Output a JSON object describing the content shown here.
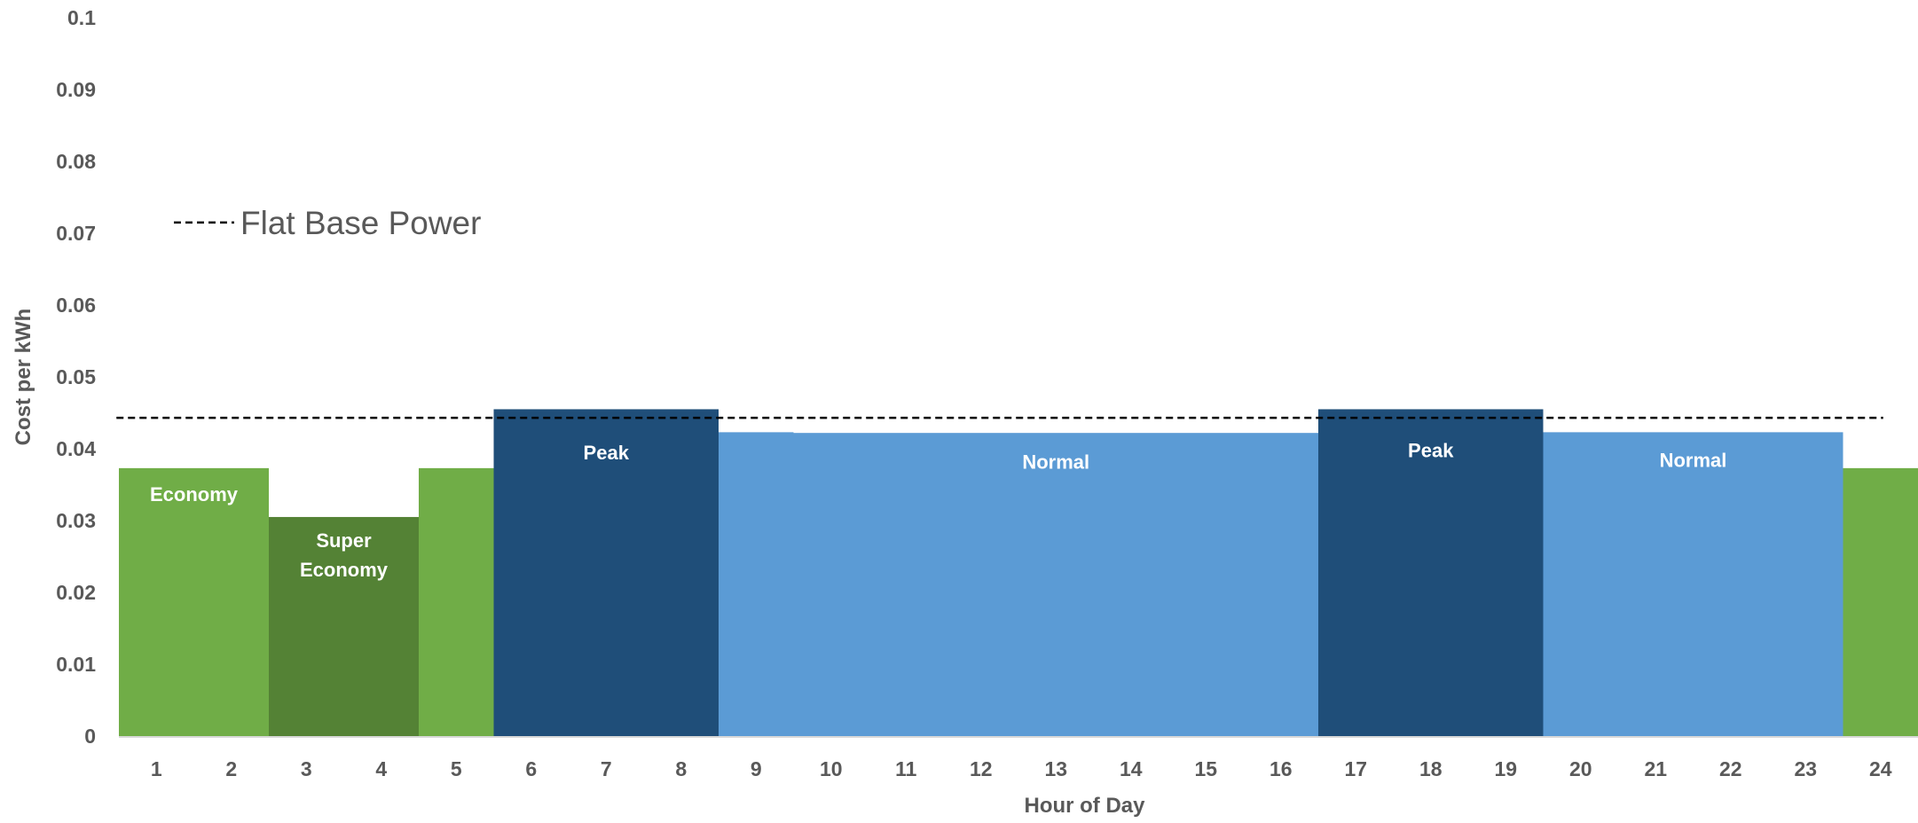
{
  "chart_data": {
    "type": "bar",
    "title": "",
    "xlabel": "Hour of Day",
    "ylabel": "Cost per kWh",
    "xlim": [
      0.5,
      24.5
    ],
    "ylim": [
      0,
      0.1
    ],
    "x_ticks": [
      "1",
      "2",
      "3",
      "4",
      "5",
      "6",
      "7",
      "8",
      "9",
      "10",
      "11",
      "12",
      "13",
      "14",
      "15",
      "16",
      "17",
      "18",
      "19",
      "20",
      "21",
      "22",
      "23",
      "24"
    ],
    "y_ticks": [
      {
        "value": 0,
        "label": "0"
      },
      {
        "value": 0.01,
        "label": "0.01"
      },
      {
        "value": 0.02,
        "label": "0.02"
      },
      {
        "value": 0.03,
        "label": "0.03"
      },
      {
        "value": 0.04,
        "label": "0.04"
      },
      {
        "value": 0.05,
        "label": "0.05"
      },
      {
        "value": 0.06,
        "label": "0.06"
      },
      {
        "value": 0.07,
        "label": "0.07"
      },
      {
        "value": 0.08,
        "label": "0.08"
      },
      {
        "value": 0.09,
        "label": "0.09"
      },
      {
        "value": 0.1,
        "label": "0.1"
      }
    ],
    "grid": false,
    "bands": [
      {
        "tier": "economy",
        "from": 0.5,
        "to": 2.5,
        "value": 0.0373,
        "color": "#70AD47",
        "label": [],
        "label_value": 0.0327,
        "label_lines": [
          "Economy"
        ]
      },
      {
        "tier": "super-economy",
        "from": 2.5,
        "to": 4.5,
        "value": 0.0305,
        "color": "#548235",
        "label_value": 0.0263,
        "label_lines": [
          "Super",
          "Economy"
        ]
      },
      {
        "tier": "economy",
        "from": 4.5,
        "to": 5.5,
        "value": 0.0373,
        "color": "#70AD47",
        "label_value": null,
        "label_lines": []
      },
      {
        "tier": "peak",
        "from": 5.5,
        "to": 8.5,
        "value": 0.0455,
        "color": "#1F4E79",
        "label_value": 0.0385,
        "label_lines": [
          "Peak"
        ]
      },
      {
        "tier": "normal",
        "from": 8.5,
        "to": 9.5,
        "value": 0.0423,
        "color": "#5B9BD5",
        "label_value": null,
        "label_lines": []
      },
      {
        "tier": "normal",
        "from": 9.5,
        "to": 16.5,
        "value": 0.0422,
        "color": "#5B9BD5",
        "label_value": 0.0372,
        "label_lines": [
          "Normal"
        ]
      },
      {
        "tier": "peak",
        "from": 16.5,
        "to": 19.5,
        "value": 0.0455,
        "color": "#1F4E79",
        "label_value": 0.0388,
        "label_lines": [
          "Peak"
        ]
      },
      {
        "tier": "normal",
        "from": 19.5,
        "to": 23.5,
        "value": 0.0423,
        "color": "#5B9BD5",
        "label_value": 0.0375,
        "label_lines": [
          "Normal"
        ]
      },
      {
        "tier": "economy",
        "from": 23.5,
        "to": 24.5,
        "value": 0.0373,
        "color": "#70AD47",
        "label_value": null,
        "label_lines": []
      }
    ],
    "reference_lines": [
      {
        "name": "Flat Base Power",
        "value": 0.0443,
        "from": 1,
        "to": 24,
        "style": "dashed",
        "color": "#000000"
      }
    ],
    "legend": {
      "placement": "upper-left",
      "entries": [
        {
          "label": "Flat Base Power",
          "style": "dashed",
          "color": "#000000"
        }
      ]
    },
    "colors": {
      "axis_line": "#D9D9D9",
      "tick_text": "#595959",
      "band_text": "#FFFFFF"
    }
  }
}
